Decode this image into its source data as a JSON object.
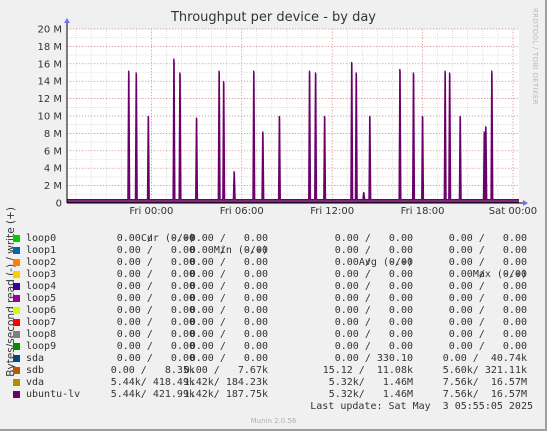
{
  "title": "Throughput per device - by day",
  "side_credit": "RRDTOOL / TOBI OETIKER",
  "version": "Munin 2.0.56",
  "last_update": "Last update: Sat May  3 05:55:05 2025",
  "legend_header": {
    "cur": "Cur (-/+)",
    "min": "Min (-/+)",
    "avg": "Avg (-/+)",
    "max": "Max (-/+)"
  },
  "legend": [
    {
      "name": "loop0",
      "color": "#00cc00",
      "cur": "0.00 /   0.00",
      "min": "0.00 /   0.00",
      "avg": "0.00 /   0.00",
      "max": "0.00 /   0.00"
    },
    {
      "name": "loop1",
      "color": "#0066b3",
      "cur": "0.00 /   0.00",
      "min": "0.00 /   0.00",
      "avg": "0.00 /   0.00",
      "max": "0.00 /   0.00"
    },
    {
      "name": "loop2",
      "color": "#ff8000",
      "cur": "0.00 /   0.00",
      "min": "0.00 /   0.00",
      "avg": "0.00 /   0.00",
      "max": "0.00 /   0.00"
    },
    {
      "name": "loop3",
      "color": "#ffcc00",
      "cur": "0.00 /   0.00",
      "min": "0.00 /   0.00",
      "avg": "0.00 /   0.00",
      "max": "0.00 /   0.00"
    },
    {
      "name": "loop4",
      "color": "#330099",
      "cur": "0.00 /   0.00",
      "min": "0.00 /   0.00",
      "avg": "0.00 /   0.00",
      "max": "0.00 /   0.00"
    },
    {
      "name": "loop5",
      "color": "#990099",
      "cur": "0.00 /   0.00",
      "min": "0.00 /   0.00",
      "avg": "0.00 /   0.00",
      "max": "0.00 /   0.00"
    },
    {
      "name": "loop6",
      "color": "#ccff00",
      "cur": "0.00 /   0.00",
      "min": "0.00 /   0.00",
      "avg": "0.00 /   0.00",
      "max": "0.00 /   0.00"
    },
    {
      "name": "loop7",
      "color": "#ff0000",
      "cur": "0.00 /   0.00",
      "min": "0.00 /   0.00",
      "avg": "0.00 /   0.00",
      "max": "0.00 /   0.00"
    },
    {
      "name": "loop8",
      "color": "#808080",
      "cur": "0.00 /   0.00",
      "min": "0.00 /   0.00",
      "avg": "0.00 /   0.00",
      "max": "0.00 /   0.00"
    },
    {
      "name": "loop9",
      "color": "#008f00",
      "cur": "0.00 /   0.00",
      "min": "0.00 /   0.00",
      "avg": "0.00 /   0.00",
      "max": "0.00 /   0.00"
    },
    {
      "name": "sda",
      "color": "#00487d",
      "cur": "0.00 /   0.00",
      "min": "0.00 /   0.00",
      "avg": "0.00 / 330.10",
      "max": "0.00 /  40.74k"
    },
    {
      "name": "sdb",
      "color": "#b35a00",
      "cur": "0.00 /   8.35k",
      "min": "0.00 /   7.67k",
      "avg": "15.12 /  11.08k",
      "max": "5.60k/ 321.11k"
    },
    {
      "name": "vda",
      "color": "#b38f00",
      "cur": "5.44k/ 418.49k",
      "min": "1.42k/ 184.23k",
      "avg": "5.32k/   1.46M",
      "max": "7.56k/  16.57M"
    },
    {
      "name": "ubuntu-lv",
      "color": "#6b006b",
      "cur": "5.44k/ 421.99k",
      "min": "1.42k/ 187.75k",
      "avg": "5.32k/   1.46M",
      "max": "7.56k/  16.57M"
    }
  ],
  "chart_data": {
    "type": "line",
    "title": "Throughput per device - by day",
    "ylabel": "Bytes/second read (-) / write (+)",
    "ylim": [
      0,
      20000000
    ],
    "yticks": [
      0,
      2000000,
      4000000,
      6000000,
      8000000,
      10000000,
      12000000,
      14000000,
      16000000,
      18000000,
      20000000
    ],
    "ytick_labels": [
      "0",
      "2 M",
      "4 M",
      "6 M",
      "8 M",
      "10 M",
      "12 M",
      "14 M",
      "16 M",
      "18 M",
      "20 M"
    ],
    "xlim_hours": [
      -5.6,
      24.4
    ],
    "xticks_hours": [
      0,
      6,
      12,
      18,
      24
    ],
    "xtick_labels": [
      "Fri 00:00",
      "Fri 06:00",
      "Fri 12:00",
      "Fri 18:00",
      "Sat 00:00"
    ],
    "grid": true,
    "series_color": "#6b006b",
    "series": [
      {
        "name": "ubuntu-lv",
        "baseline": 400000,
        "peaks_hours": [
          [
            -1.5,
            15.2
          ],
          [
            -1.0,
            15.0
          ],
          [
            -0.2,
            10.0
          ],
          [
            1.5,
            16.6
          ],
          [
            1.9,
            15.0
          ],
          [
            3.0,
            9.8
          ],
          [
            4.5,
            15.2
          ],
          [
            4.8,
            14.0
          ],
          [
            5.5,
            3.6
          ],
          [
            6.8,
            15.2
          ],
          [
            7.4,
            8.2
          ],
          [
            8.5,
            10.0
          ],
          [
            10.5,
            15.2
          ],
          [
            10.9,
            15.0
          ],
          [
            11.5,
            10.0
          ],
          [
            13.3,
            16.2
          ],
          [
            13.6,
            15.0
          ],
          [
            14.1,
            1.2
          ],
          [
            14.5,
            10.0
          ],
          [
            16.5,
            15.4
          ],
          [
            17.4,
            15.0
          ],
          [
            18.0,
            10.0
          ],
          [
            19.5,
            15.2
          ],
          [
            19.8,
            15.0
          ],
          [
            20.5,
            10.0
          ],
          [
            22.1,
            8.2
          ],
          [
            22.2,
            8.8
          ],
          [
            22.6,
            15.2
          ],
          [
            25.5,
            15.2
          ],
          [
            25.8,
            15.0
          ],
          [
            26.5,
            10.0
          ],
          [
            28.5,
            15.2
          ],
          [
            28.8,
            15.0
          ],
          [
            29.5,
            10.0
          ]
        ],
        "peak_units": "M"
      }
    ]
  }
}
